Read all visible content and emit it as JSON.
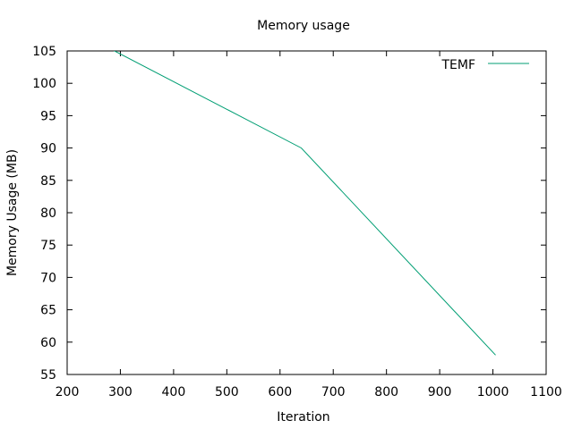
{
  "chart_data": {
    "type": "line",
    "title": "Memory usage",
    "xlabel": "Iteration",
    "ylabel": "Memory Usage (MB)",
    "xlim": [
      200,
      1100
    ],
    "ylim": [
      55,
      105
    ],
    "xticks": [
      200,
      300,
      400,
      500,
      600,
      700,
      800,
      900,
      1000,
      1100
    ],
    "yticks": [
      55,
      60,
      65,
      70,
      75,
      80,
      85,
      90,
      95,
      100,
      105
    ],
    "grid": false,
    "legend_position": "top-right",
    "series": [
      {
        "name": "TEMF",
        "color": "#009e73",
        "x": [
          275,
          640,
          1005
        ],
        "y": [
          105.6,
          90,
          58
        ]
      }
    ]
  }
}
